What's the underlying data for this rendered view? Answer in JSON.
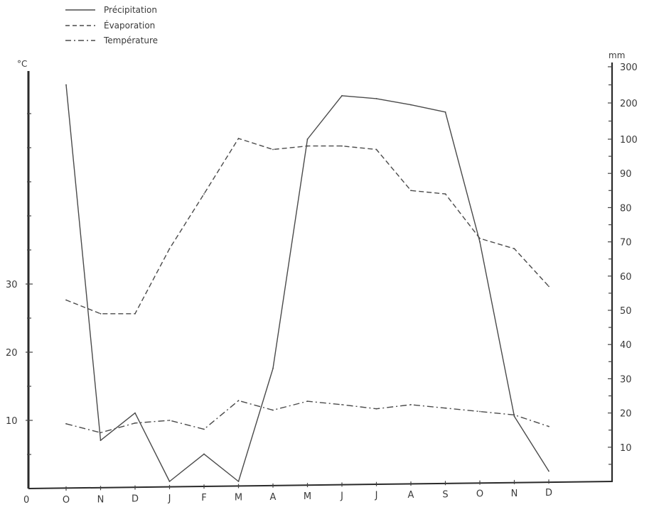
{
  "chart_data": {
    "type": "line",
    "title": "",
    "xlabel": "",
    "categories": [
      "O",
      "N",
      "D",
      "J",
      "F",
      "M",
      "A",
      "M",
      "J",
      "J",
      "A",
      "S",
      "O",
      "N",
      "D"
    ],
    "x_axis_origin_label": "0",
    "y_left": {
      "unit": "°C",
      "ticks": [
        10,
        20,
        30
      ]
    },
    "y_right": {
      "unit": "mm",
      "ticks": [
        10,
        20,
        30,
        40,
        50,
        60,
        70,
        80,
        90,
        100,
        200,
        300
      ],
      "scale": "piecewise: linear 0–100, compressed 100–300"
    },
    "grid": false,
    "legend_position": "top-left",
    "series": [
      {
        "name": "Précipitation",
        "axis": "right",
        "dash": "solid",
        "values": [
          250,
          12,
          20,
          0,
          8,
          0,
          33,
          100,
          220,
          212,
          195,
          175,
          70,
          19,
          3
        ]
      },
      {
        "name": "Évaporation",
        "axis": "right",
        "dash": "dashed",
        "values": [
          53,
          49,
          49,
          68,
          84,
          102,
          97,
          98,
          98,
          97,
          85,
          84,
          71,
          68,
          57
        ]
      },
      {
        "name": "Température",
        "axis": "left",
        "dash": "dash-dot",
        "values": [
          9.5,
          8.2,
          9.6,
          10,
          8.7,
          12.9,
          11.5,
          12.8,
          12.3,
          11.7,
          12.3,
          11.8,
          11.3,
          10.8,
          9.1
        ]
      }
    ]
  }
}
